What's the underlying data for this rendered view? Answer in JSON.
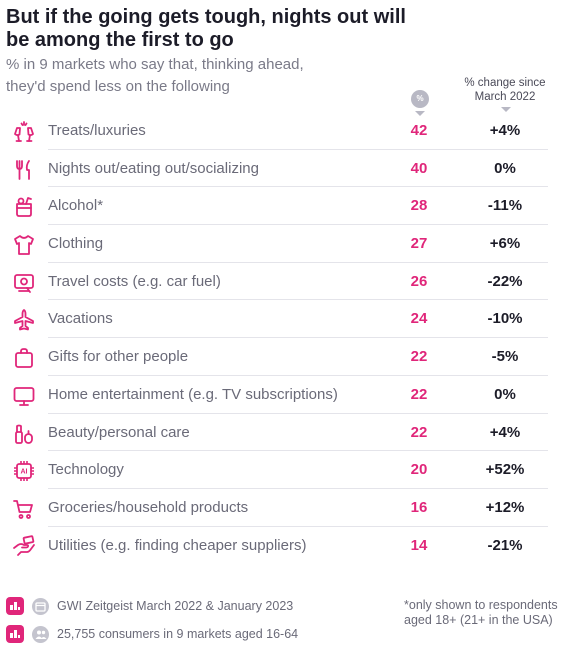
{
  "header": {
    "title": "But if the going gets tough, nights out will be among the first to go",
    "subtitle": "% in 9 markets who say that, thinking ahead, they'd spend less on the following",
    "pct_badge": "%",
    "change_label": "% change since March 2022"
  },
  "chart_data": {
    "type": "table",
    "columns": [
      "%",
      "% change since March 2022"
    ],
    "rows": [
      {
        "label": "Treats/luxuries",
        "value": 42,
        "change": "+4%",
        "icon": "champagne-glasses-icon"
      },
      {
        "label": "Nights out/eating out/socializing",
        "value": 40,
        "change": "0%",
        "icon": "fork-knife-icon"
      },
      {
        "label": "Alcohol*",
        "value": 28,
        "change": "-11%",
        "icon": "cocktail-icon"
      },
      {
        "label": "Clothing",
        "value": 27,
        "change": "+6%",
        "icon": "shirt-icon"
      },
      {
        "label": "Travel costs (e.g. car fuel)",
        "value": 26,
        "change": "-22%",
        "icon": "travel-card-icon"
      },
      {
        "label": "Vacations",
        "value": 24,
        "change": "-10%",
        "icon": "airplane-icon"
      },
      {
        "label": "Gifts for other people",
        "value": 22,
        "change": "-5%",
        "icon": "gift-bag-icon"
      },
      {
        "label": "Home entertainment (e.g. TV subscriptions)",
        "value": 22,
        "change": "0%",
        "icon": "tv-icon"
      },
      {
        "label": "Beauty/personal care",
        "value": 22,
        "change": "+4%",
        "icon": "cosmetics-icon"
      },
      {
        "label": "Technology",
        "value": 20,
        "change": "+52%",
        "icon": "ai-chip-icon"
      },
      {
        "label": "Groceries/household products",
        "value": 16,
        "change": "+12%",
        "icon": "shopping-cart-icon"
      },
      {
        "label": "Utilities (e.g. finding cheaper suppliers)",
        "value": 14,
        "change": "-21%",
        "icon": "hand-bill-icon"
      }
    ]
  },
  "footer": {
    "source": "GWI Zeitgeist March 2022 & January 2023",
    "sample": "25,755 consumers in 9 markets aged 16-64",
    "note": "*only shown to respondents aged 18+ (21+ in the USA)"
  },
  "colors": {
    "accent": "#e0267a",
    "text": "#1c1c28",
    "muted": "#6a6a78"
  }
}
